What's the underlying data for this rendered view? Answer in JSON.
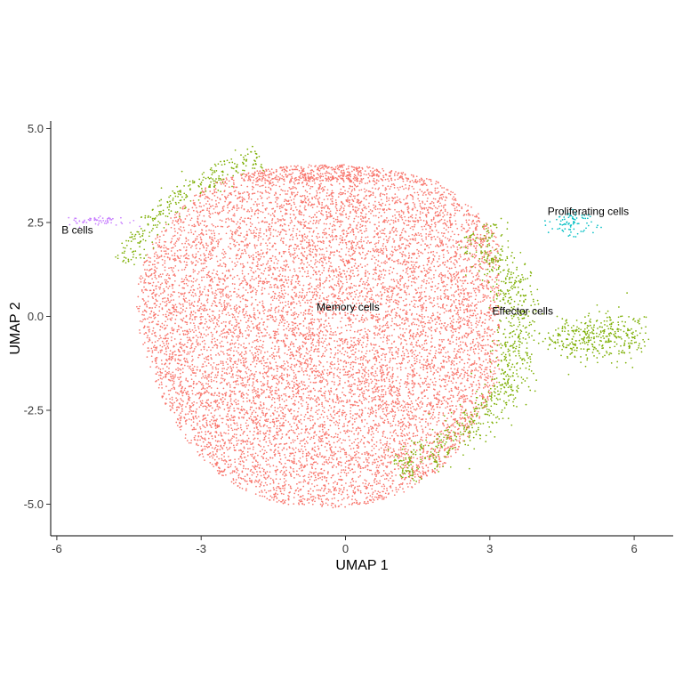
{
  "chart_data": {
    "type": "scatter",
    "title": "",
    "xlabel": "UMAP 1",
    "ylabel": "UMAP 2",
    "xlim": [
      -6.2,
      6.8
    ],
    "ylim": [
      -5.8,
      5.2
    ],
    "x_ticks": [
      -6,
      -3,
      0,
      3,
      6
    ],
    "x_tick_labels": [
      "-6",
      "-3",
      "0",
      "3",
      "6"
    ],
    "y_ticks": [
      5,
      2.5,
      0,
      -2.5,
      -5
    ],
    "y_tick_labels": [
      "5.0",
      "2.5",
      "0.0",
      "-2.5",
      "-5.0"
    ],
    "grid": false,
    "legend": "none",
    "clusters": [
      {
        "label": "Memory cells",
        "color": "#F8766D",
        "label_x": -0.6,
        "label_y": 0.15,
        "approx_points": 11000,
        "region": {
          "cx": -0.4,
          "cy": -0.3,
          "rx": 4.1,
          "ry": 4.8
        }
      },
      {
        "label": "Effector cells",
        "color": "#7CAE00",
        "label_x": 3.05,
        "label_y": 0.05,
        "approx_points": 1500,
        "region": {
          "cx": 4.2,
          "cy": -0.9,
          "rx": 1.9,
          "ry": 1.4
        }
      },
      {
        "label": "Proliferating cells",
        "color": "#00BFC4",
        "label_x": 4.2,
        "label_y": 2.7,
        "approx_points": 80,
        "region": {
          "cx": 4.7,
          "cy": 2.5,
          "rx": 0.45,
          "ry": 0.3
        }
      },
      {
        "label": "B cells",
        "color": "#C77CFF",
        "label_x": -5.9,
        "label_y": 2.2,
        "approx_points": 60,
        "region": {
          "cx": -5.1,
          "cy": 2.55,
          "rx": 0.55,
          "ry": 0.12
        }
      }
    ]
  }
}
